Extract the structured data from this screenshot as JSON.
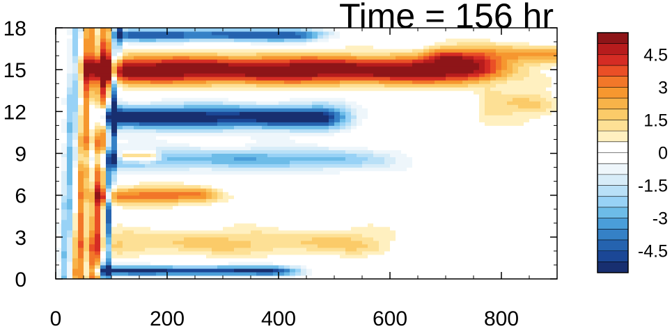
{
  "chart_data": {
    "type": "heatmap",
    "title": "Time = 156 hr",
    "xlim": [
      0,
      900
    ],
    "ylim": [
      0,
      18
    ],
    "x_ticks": [
      0,
      200,
      400,
      600,
      800
    ],
    "y_ticks": [
      0,
      3,
      6,
      9,
      12,
      15,
      18
    ],
    "colorbar": {
      "labels": [
        "4.5",
        "3",
        "1.5",
        "0",
        "-1.5",
        "-3",
        "-4.5"
      ],
      "label_values": [
        4.5,
        3,
        1.5,
        0,
        -1.5,
        -3,
        -4.5
      ],
      "levels": [
        -5.5,
        -5,
        -4.5,
        -4,
        -3.5,
        -3,
        -2.5,
        -2,
        -1.5,
        -1,
        -0.5,
        0,
        0.5,
        1,
        1.5,
        2,
        2.5,
        3,
        3.5,
        4,
        4.5,
        5,
        5.5
      ],
      "colors": [
        "#8e1518",
        "#b71c1d",
        "#d52c24",
        "#ea4f26",
        "#f27729",
        "#f6972f",
        "#f8b349",
        "#fbcb69",
        "#fde095",
        "#fff0c0",
        "#ffffff",
        "#ffffff",
        "#eef6fb",
        "#d7ecf8",
        "#b9e0f7",
        "#98d2f6",
        "#6dbce8",
        "#4a9ed9",
        "#3581c6",
        "#2563af",
        "#1b4796",
        "#182f70"
      ]
    },
    "bands": [
      {
        "y": 15.0,
        "amp": 5.8,
        "halfwidth": 1.0,
        "x_start": 95,
        "x_end": 720,
        "taper": 90
      },
      {
        "y": 16.1,
        "amp": 2.4,
        "halfwidth": 0.7,
        "x_start": 700,
        "x_end": 900,
        "taper": 60
      },
      {
        "y": 11.6,
        "amp": -5.6,
        "halfwidth": 0.85,
        "x_start": 100,
        "x_end": 470,
        "taper": 60
      },
      {
        "y": 17.5,
        "amp": -4.5,
        "halfwidth": 0.45,
        "x_start": 140,
        "x_end": 420,
        "taper": 70
      },
      {
        "y": 8.6,
        "amp": -2.8,
        "halfwidth": 0.8,
        "x_start": 110,
        "x_end": 480,
        "taper": 120
      },
      {
        "y": 6.0,
        "amp": 3.2,
        "halfwidth": 0.6,
        "x_start": 95,
        "x_end": 250,
        "taper": 50
      },
      {
        "y": 8.8,
        "amp": 4.0,
        "halfwidth": 0.4,
        "x_start": 125,
        "x_end": 165,
        "taper": 20
      },
      {
        "y": 0.6,
        "amp": -5.0,
        "halfwidth": 0.35,
        "x_start": 100,
        "x_end": 380,
        "taper": 60
      },
      {
        "y": 2.6,
        "amp": 1.6,
        "halfwidth": 0.9,
        "x_start": 110,
        "x_end": 520,
        "taper": 90
      },
      {
        "y": 12.5,
        "amp": 1.3,
        "halfwidth": 1.2,
        "x_start": 780,
        "x_end": 860,
        "taper": 40
      }
    ],
    "left_stripes": [
      {
        "x": 15,
        "amp": -2.6,
        "halfwidth": 10
      },
      {
        "x": 40,
        "amp": 3.2,
        "halfwidth": 10
      },
      {
        "x": 68,
        "amp": 3.8,
        "halfwidth": 10
      },
      {
        "x": 90,
        "amp": -4.5,
        "halfwidth": 6
      }
    ]
  }
}
